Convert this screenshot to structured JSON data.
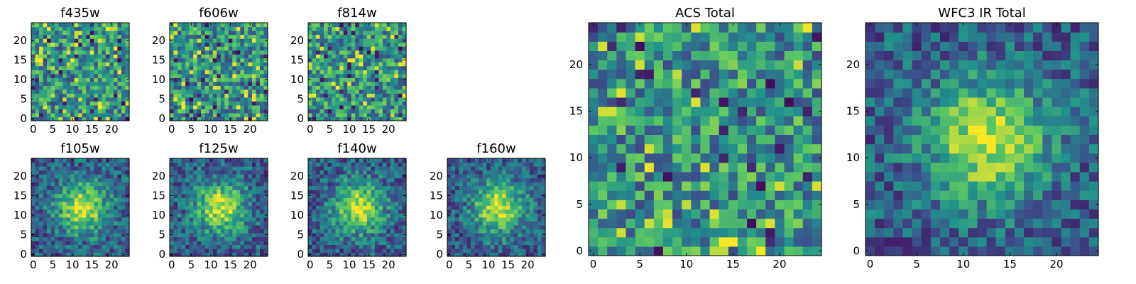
{
  "chart_data": [
    {
      "type": "heatmap",
      "title": "f435w",
      "pattern": "noise",
      "seed": 11,
      "x_ticks": [
        "0",
        "5",
        "10",
        "15",
        "20"
      ],
      "y_ticks": [
        "0",
        "5",
        "10",
        "15",
        "20"
      ],
      "xlim": [
        0,
        25
      ],
      "ylim": [
        0,
        25
      ],
      "grid_size": 25
    },
    {
      "type": "heatmap",
      "title": "f606w",
      "pattern": "noise",
      "seed": 23,
      "x_ticks": [
        "0",
        "5",
        "10",
        "15",
        "20"
      ],
      "y_ticks": [
        "0",
        "5",
        "10",
        "15",
        "20"
      ],
      "xlim": [
        0,
        25
      ],
      "ylim": [
        0,
        25
      ],
      "grid_size": 25
    },
    {
      "type": "heatmap",
      "title": "f814w",
      "pattern": "noise",
      "seed": 37,
      "x_ticks": [
        "0",
        "5",
        "10",
        "15",
        "20"
      ],
      "y_ticks": [
        "0",
        "5",
        "10",
        "15",
        "20"
      ],
      "xlim": [
        0,
        25
      ],
      "ylim": [
        0,
        25
      ],
      "grid_size": 25
    },
    {
      "type": "heatmap",
      "title": "f105w",
      "pattern": "blob",
      "seed": 41,
      "x_ticks": [
        "0",
        "5",
        "10",
        "15",
        "20"
      ],
      "y_ticks": [
        "0",
        "5",
        "10",
        "15",
        "20"
      ],
      "xlim": [
        0,
        25
      ],
      "ylim": [
        0,
        25
      ],
      "grid_size": 25
    },
    {
      "type": "heatmap",
      "title": "f125w",
      "pattern": "blob",
      "seed": 53,
      "x_ticks": [
        "0",
        "5",
        "10",
        "15",
        "20"
      ],
      "y_ticks": [
        "0",
        "5",
        "10",
        "15",
        "20"
      ],
      "xlim": [
        0,
        25
      ],
      "ylim": [
        0,
        25
      ],
      "grid_size": 25
    },
    {
      "type": "heatmap",
      "title": "f140w",
      "pattern": "blob",
      "seed": 67,
      "x_ticks": [
        "0",
        "5",
        "10",
        "15",
        "20"
      ],
      "y_ticks": [
        "0",
        "5",
        "10",
        "15",
        "20"
      ],
      "xlim": [
        0,
        25
      ],
      "ylim": [
        0,
        25
      ],
      "grid_size": 25
    },
    {
      "type": "heatmap",
      "title": "f160w",
      "pattern": "blob",
      "seed": 79,
      "x_ticks": [
        "0",
        "5",
        "10",
        "15",
        "20"
      ],
      "y_ticks": [
        "0",
        "5",
        "10",
        "15",
        "20"
      ],
      "xlim": [
        0,
        25
      ],
      "ylim": [
        0,
        25
      ],
      "grid_size": 25
    },
    {
      "type": "heatmap",
      "title": "ACS Total",
      "pattern": "noise",
      "seed": 83,
      "x_ticks": [
        "0",
        "5",
        "10",
        "15",
        "20"
      ],
      "y_ticks": [
        "0",
        "5",
        "10",
        "15",
        "20"
      ],
      "xlim": [
        0,
        25
      ],
      "ylim": [
        0,
        25
      ],
      "grid_size": 25
    },
    {
      "type": "heatmap",
      "title": "WFC3 IR Total",
      "pattern": "blob",
      "seed": 97,
      "x_ticks": [
        "0",
        "5",
        "10",
        "15",
        "20"
      ],
      "y_ticks": [
        "0",
        "5",
        "10",
        "15",
        "20"
      ],
      "xlim": [
        0,
        25
      ],
      "ylim": [
        0,
        25
      ],
      "grid_size": 25
    }
  ],
  "colormap": "viridis",
  "colors": {
    "viridis": [
      "#440154",
      "#3b528b",
      "#21918c",
      "#5ec962",
      "#fde725"
    ]
  }
}
